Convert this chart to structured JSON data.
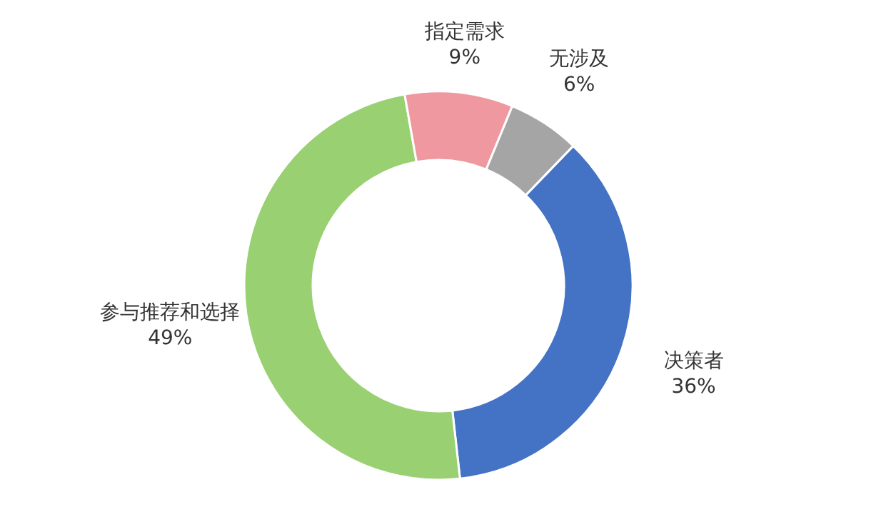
{
  "chart_data": {
    "type": "donut",
    "categories": [
      "决策者",
      "参与推荐和选择",
      "指定需求",
      "无涉及"
    ],
    "values": [
      36,
      49,
      9,
      6
    ],
    "value_labels": [
      "36%",
      "49%",
      "9%",
      "6%"
    ],
    "colors": [
      "#4472c4",
      "#99d071",
      "#f0989f",
      "#a5a5a5"
    ]
  }
}
